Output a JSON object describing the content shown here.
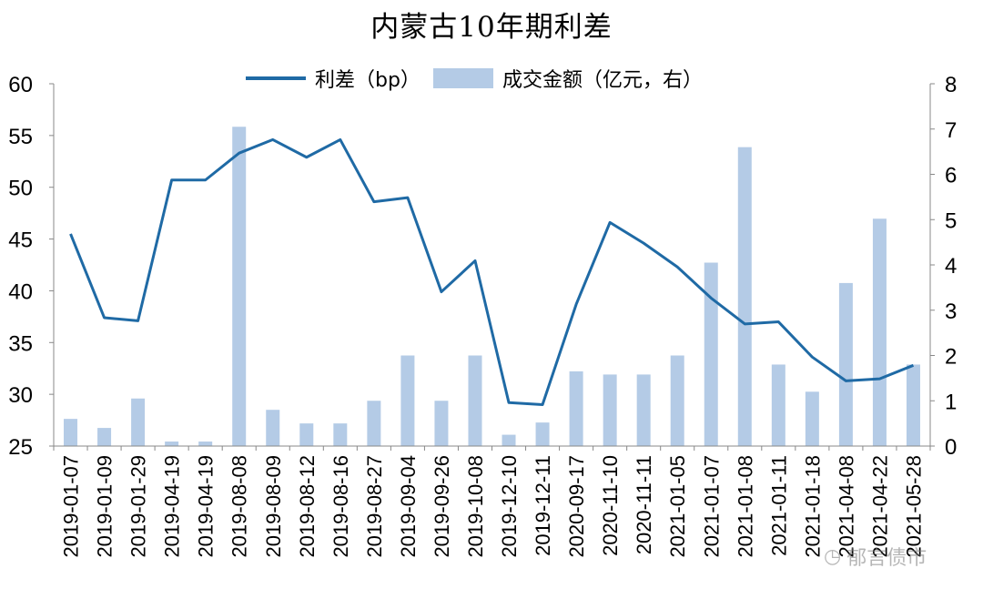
{
  "chart_data": {
    "type": "bar+line",
    "title": "内蒙古10年期利差",
    "categories": [
      "2019-01-07",
      "2019-01-09",
      "2019-01-29",
      "2019-04-19",
      "2019-04-19",
      "2019-08-08",
      "2019-08-09",
      "2019-08-12",
      "2019-08-16",
      "2019-08-27",
      "2019-09-04",
      "2019-09-26",
      "2019-10-08",
      "2019-12-10",
      "2019-12-11",
      "2020-09-17",
      "2020-11-10",
      "2020-11-11",
      "2021-01-05",
      "2021-01-07",
      "2021-01-08",
      "2021-01-11",
      "2021-01-18",
      "2021-04-08",
      "2021-04-22",
      "2021-05-28"
    ],
    "series": [
      {
        "name": "利差（bp）",
        "type": "line",
        "axis": "left",
        "color": "#1f6aa5",
        "values": [
          45.5,
          37.4,
          37.1,
          50.7,
          50.7,
          53.3,
          54.6,
          52.9,
          54.6,
          48.6,
          49.0,
          39.9,
          42.9,
          29.2,
          29.0,
          38.7,
          46.6,
          44.6,
          42.3,
          39.3,
          36.8,
          37.0,
          33.6,
          31.3,
          31.5,
          32.8
        ]
      },
      {
        "name": "成交金额（亿元，右）",
        "type": "bar",
        "axis": "right",
        "color": "#b4cbe6",
        "values": [
          0.6,
          0.4,
          1.05,
          0.1,
          0.1,
          7.05,
          0.8,
          0.5,
          0.5,
          1.0,
          2.0,
          1.0,
          2.0,
          0.25,
          0.52,
          1.65,
          1.58,
          1.58,
          2.0,
          4.05,
          6.6,
          1.8,
          1.2,
          3.6,
          5.02,
          1.8
        ]
      }
    ],
    "y_left": {
      "min": 25,
      "max": 60,
      "ticks": [
        25,
        30,
        35,
        40,
        45,
        50,
        55,
        60
      ]
    },
    "y_right": {
      "min": 0,
      "max": 8,
      "ticks": [
        0,
        1,
        2,
        3,
        4,
        5,
        6,
        7,
        8
      ]
    },
    "grid": false,
    "legend_position": "top"
  },
  "legend": {
    "line_label": "利差（bp）",
    "bar_label": "成交金额（亿元，右）"
  },
  "watermark": "郁言债市"
}
